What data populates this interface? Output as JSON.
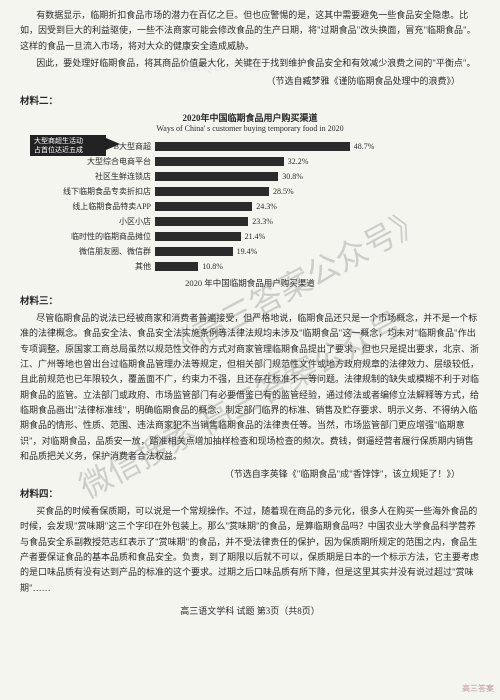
{
  "intro": {
    "p1": "有数据显示，临期折扣食品市场的潜力在百亿之巨。但也应警惕的是，这其中需要避免一些食品安全隐患。比如，因受到巨大的利益驱使，一些不法商家可能会修改食品的生产日期，将\"过期食品\"改头换面，冒充\"临期食品\"。这样的食品一旦流入市场，将对大众的健康安全造成威胁。",
    "p2": "因此，要处理好临期食品，将其商品价值最大化，关键在于找到维护食品安全和有效减少浪费之间的\"平衡点\"。",
    "cite": "（节选自臧梦雅《谨防临期食品处理中的浪费》）"
  },
  "section2": {
    "label": "材料二："
  },
  "chart": {
    "title": "2020年中国临期食品用户购买渠道",
    "subtitle": "Ways of China' s customer buying temporary food in 2020",
    "annotation_l1": "大型商超生活动",
    "annotation_l2": "占首位达近五成",
    "bar_color": "#2b2b2b",
    "max": 50,
    "rows": [
      {
        "label": "B大型商超",
        "value": 48.7,
        "text": "48.7%"
      },
      {
        "label": "大型综合电商平台",
        "value": 32.2,
        "text": "32.2%"
      },
      {
        "label": "社区生鲜连锁店",
        "value": 30.8,
        "text": "30.8%"
      },
      {
        "label": "线下临期食品专卖折扣店",
        "value": 28.5,
        "text": "28.5%"
      },
      {
        "label": "线上临期食品特卖APP",
        "value": 24.3,
        "text": "24.3%"
      },
      {
        "label": "小区小店",
        "value": 23.3,
        "text": "23.3%"
      },
      {
        "label": "临时性的临期商品摊位",
        "value": 21.4,
        "text": "21.4%"
      },
      {
        "label": "微信朋友圈、微信群",
        "value": 19.4,
        "text": "19.4%"
      },
      {
        "label": "其他",
        "value": 10.8,
        "text": "10.8%"
      }
    ],
    "caption": "2020 年中国临期食品用户购买渠道"
  },
  "section3": {
    "label": "材料三：",
    "p1": "尽管临期食品的说法已经被商家和消费者普遍接受，但严格地说，临期食品还只是一个市场概念，并不是一个标准的法律概念。食品安全法、食品安全法实施条例等法律法规均未涉及\"临期食品\"这一概念，均未对\"临期食品\"作出专项调整。原国家工商总局虽然以规范性文件的方式对商家管理临期食品提出了要求，但也只是提出要求，北京、浙江、广州等地也曾出台过临期食品管理办法等规定，但相关部门规范性文件或地方政府规章的法律效力、层级较低，且此前规范也已年限较久，覆盖面不广，约束力不强，且还存在标准不一等问题。法律规制的缺失或模糊不利于对临期食品的监管。立法部门或政府、市场监管部门有必要借鉴已有的监管经验，通过修法或者编修立法解释等方式，给临期食品画出\"法律标准线\"，明确临期食品的概念、制定部门临界的标准、销售及贮存要求、明示义务、不得纳入临期食品的情形、性质、范围、违法商家犯不当销售临期食品的法律责任等。当然，市场监管部门更应增强\"临期意识\"，对临期食品，品质安一放，踏准相关点增加抽样检查和现场检查的频次。费钱，倒逼经营者履行保质期内销售和品质把关义务，保护消费者合法权益。",
    "cite": "（节选自李英锋《\"临期食品\"成\"香饽饽\"，该立规矩了！》）"
  },
  "section4": {
    "label": "材料四：",
    "p1": "买食品的时候看保质期，可以说是一个常规操作。不过，随着现在商品的多元化，很多人在购买一些海外食品的时候，会发现\"赏味期\"这三个字印在外包装上。那么\"赏味期\"的食品，是算临期食品吗？中国农业大学食品科学营养与食品安全系副教授范志红表示了\"赏味期\"的食品，并不受法律责任的保护，因为保质期所规定的范围之内，食品生产者要保证食品的基本品质和食品安全。负责，到了期限以后就不可以，保质期是日本的一个标示方法，它主要考虑的是口味品质有没有达到产品的标准的这个要求。过期之后口味品质有所下降，但是这里其实并没有说过超过\"赏味期\"……"
  },
  "footer": "高三语文学科 试题 第3页（共8页）",
  "watermarks": {
    "wm1": "《高三答案公众号》",
    "wm2": "微信搜索 高三答案公众号",
    "corner": "高三答案"
  }
}
